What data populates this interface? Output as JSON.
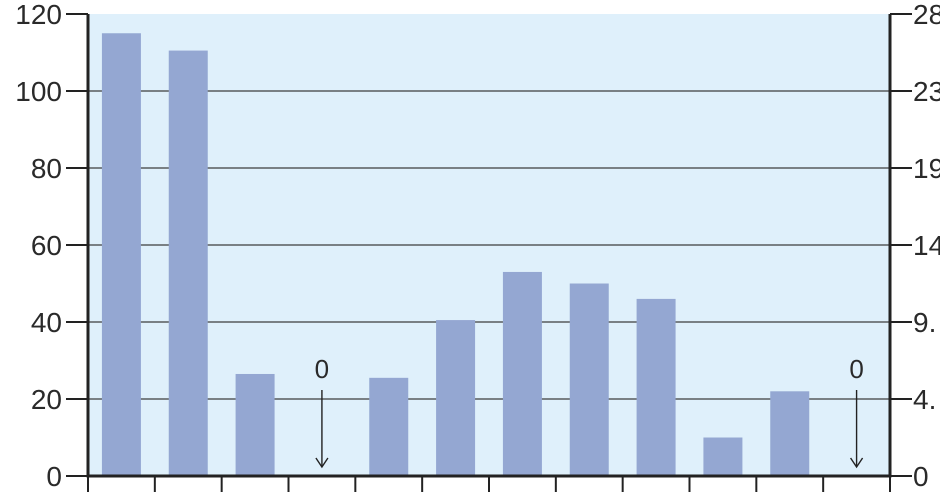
{
  "chart_data": {
    "type": "bar",
    "categories": [
      "",
      "",
      "",
      "",
      "",
      "",
      "",
      "",
      "",
      "",
      "",
      ""
    ],
    "values": [
      115,
      110.5,
      26.5,
      0,
      25.5,
      40.5,
      53,
      50,
      46,
      10,
      22,
      0
    ],
    "y_left": {
      "ylim": [
        0,
        120
      ],
      "ticks": [
        "0",
        "20",
        "40",
        "60",
        "80",
        "100",
        "120"
      ]
    },
    "y_right": {
      "ticks": [
        "0",
        "4.",
        "9.",
        "14",
        "19",
        "23",
        "28"
      ]
    },
    "zero_annotations": [
      {
        "index": 3,
        "text": "0"
      },
      {
        "index": 11,
        "text": "0"
      }
    ],
    "grid": true,
    "colors": {
      "plot_background": "#dff0fb",
      "bar": "#94a7d2",
      "axis": "#222222",
      "grid": "#3c3c3c",
      "text": "#2a2a2a"
    }
  }
}
